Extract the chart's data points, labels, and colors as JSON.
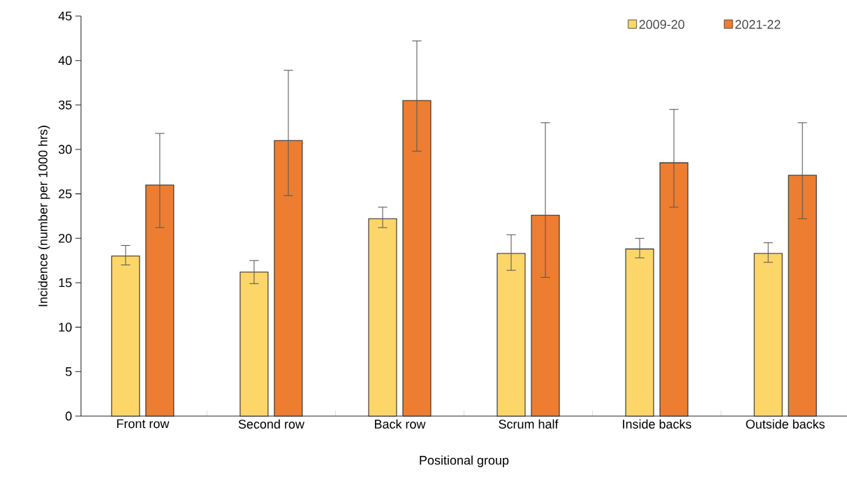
{
  "chart_data": {
    "type": "bar",
    "xlabel": "Positional group",
    "ylabel": "Incidence (number per 1000 hrs)",
    "categories": [
      "Front row",
      "Second row",
      "Back row",
      "Scrum half",
      "Inside backs",
      "Outside backs"
    ],
    "series": [
      {
        "name": "2009-20",
        "color": "#fdd66a",
        "values": [
          18.0,
          16.2,
          22.2,
          18.3,
          18.8,
          18.3
        ],
        "errors": [
          [
            17.0,
            19.2
          ],
          [
            14.9,
            17.5
          ],
          [
            21.2,
            23.5
          ],
          [
            16.4,
            20.4
          ],
          [
            17.8,
            20.0
          ],
          [
            17.3,
            19.5
          ]
        ]
      },
      {
        "name": "2021-22",
        "color": "#ed7d31",
        "values": [
          26.0,
          31.0,
          35.5,
          22.6,
          28.5,
          27.1
        ],
        "errors": [
          [
            21.2,
            31.8
          ],
          [
            24.8,
            38.9
          ],
          [
            29.8,
            42.2
          ],
          [
            15.6,
            33.0
          ],
          [
            23.5,
            34.5
          ],
          [
            22.2,
            33.0
          ]
        ]
      }
    ],
    "ylim": [
      0,
      45
    ],
    "yticks": [
      0,
      5,
      10,
      15,
      20,
      25,
      30,
      35,
      40,
      45
    ],
    "legend": "top right"
  }
}
